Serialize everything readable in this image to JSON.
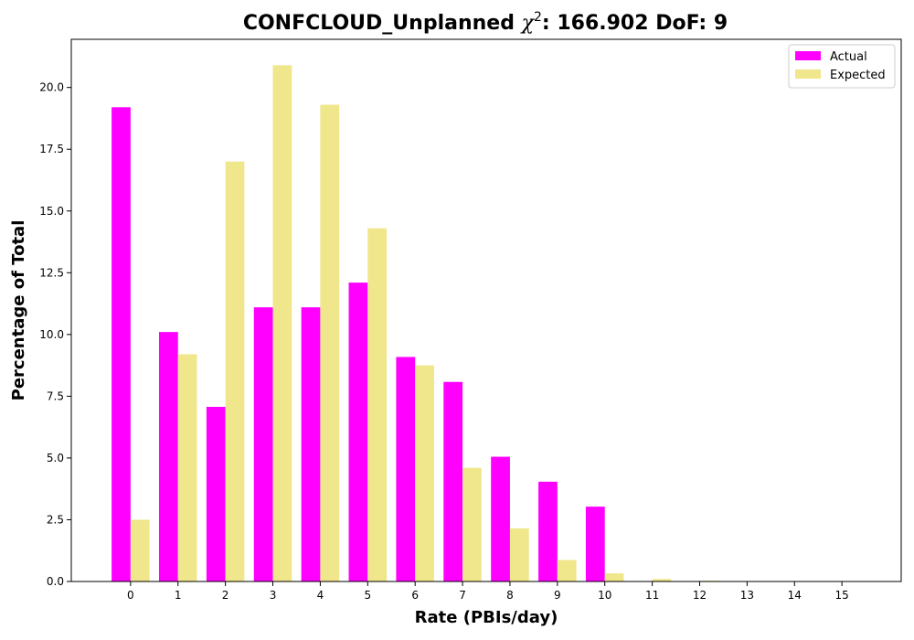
{
  "chart_data": {
    "type": "bar",
    "title_main": "CONFCLOUD_Unplanned ",
    "title_chi": "χ",
    "title_sup": "2",
    "title_rest": ": 166.902 DoF: 9",
    "xlabel": "Rate (PBIs/day)",
    "ylabel": "Percentage of Total",
    "categories": [
      "0",
      "1",
      "2",
      "3",
      "4",
      "5",
      "6",
      "7",
      "8",
      "9",
      "10",
      "11",
      "12",
      "13",
      "14",
      "15"
    ],
    "series": [
      {
        "name": "Actual",
        "color": "#ff00ff",
        "values": [
          19.2,
          10.1,
          7.07,
          11.1,
          11.1,
          12.1,
          9.09,
          8.08,
          5.05,
          4.04,
          3.03,
          0,
          0,
          0,
          0,
          0
        ]
      },
      {
        "name": "Expected",
        "color": "#f0e68c",
        "values": [
          2.5,
          9.2,
          17.0,
          20.9,
          19.3,
          14.3,
          8.75,
          4.6,
          2.15,
          0.87,
          0.33,
          0.1,
          0.03,
          0.01,
          0.0,
          0.0
        ]
      }
    ],
    "yticks": [
      "0.0",
      "2.5",
      "5.0",
      "7.5",
      "10.0",
      "12.5",
      "15.0",
      "17.5",
      "20.0"
    ],
    "ylim": [
      0,
      21.95
    ],
    "xlim": [
      -1.25,
      16.25
    ],
    "grid": false,
    "legend_position": "top-right"
  }
}
